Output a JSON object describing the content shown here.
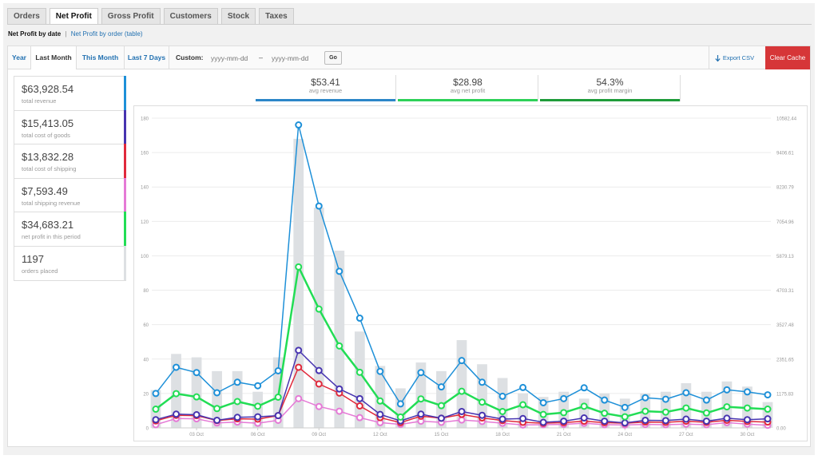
{
  "tabs": [
    "Orders",
    "Net Profit",
    "Gross Profit",
    "Customers",
    "Stock",
    "Taxes"
  ],
  "active_tab": 1,
  "subnav": {
    "current": "Net Profit by date",
    "separator": "|",
    "link": "Net Profit by order (table)"
  },
  "ranges": [
    "Year",
    "Last Month",
    "This Month",
    "Last 7 Days"
  ],
  "active_range": 1,
  "custom": {
    "label": "Custom:",
    "from_placeholder": "yyyy-mm-dd",
    "to_placeholder": "yyyy-mm-dd",
    "dash": "–",
    "go_label": "Go"
  },
  "export_label": "Export CSV",
  "clear_cache_label": "Clear Cache",
  "legend": [
    {
      "value": "$63,928.54",
      "label": "total revenue",
      "color": "#1e90d8"
    },
    {
      "value": "$15,413.05",
      "label": "total cost of goods",
      "color": "#4734b0"
    },
    {
      "value": "$13,832.28",
      "label": "total cost of shipping",
      "color": "#e0293b"
    },
    {
      "value": "$7,593.49",
      "label": "total shipping revenue",
      "color": "#e57ad6"
    },
    {
      "value": "$34,683.21",
      "label": "net profit in this period",
      "color": "#22dd55"
    },
    {
      "value": "1197",
      "label": "orders placed",
      "color": "#dde0e3"
    }
  ],
  "summary": [
    {
      "value": "$53.41",
      "label": "avg revenue",
      "color": "#2c86c8"
    },
    {
      "value": "$28.98",
      "label": "avg net profit",
      "color": "#2ed158"
    },
    {
      "value": "54.3%",
      "label": "avg profit margin",
      "color": "#1f9c3a"
    }
  ],
  "chart_data": {
    "type": "line",
    "x": [
      "1 Oct",
      "2 Oct",
      "3 Oct",
      "4 Oct",
      "5 Oct",
      "6 Oct",
      "7 Oct",
      "8 Oct",
      "9 Oct",
      "10 Oct",
      "11 Oct",
      "12 Oct",
      "13 Oct",
      "14 Oct",
      "15 Oct",
      "16 Oct",
      "17 Oct",
      "18 Oct",
      "19 Oct",
      "20 Oct",
      "21 Oct",
      "22 Oct",
      "23 Oct",
      "24 Oct",
      "25 Oct",
      "26 Oct",
      "27 Oct",
      "28 Oct",
      "29 Oct",
      "30 Oct",
      "31 Oct"
    ],
    "x_ticks": [
      "03 Oct",
      "06 Oct",
      "09 Oct",
      "12 Oct",
      "15 Oct",
      "18 Oct",
      "21 Oct",
      "24 Oct",
      "27 Oct",
      "30 Oct"
    ],
    "y_left_ticks": [
      "0",
      "20",
      "40",
      "60",
      "80",
      "100",
      "120",
      "140",
      "160",
      "180"
    ],
    "y_right_ticks": [
      "0.00",
      "1175.83",
      "2351.65",
      "3527.48",
      "4703.31",
      "5879.13",
      "7054.96",
      "8230.79",
      "9406.61",
      "10582.44"
    ],
    "ylim_left": [
      0,
      180
    ],
    "ylim_right": [
      0,
      10582.44
    ],
    "bars": {
      "name": "orders placed",
      "axis": "left",
      "color": "#dde0e3",
      "values": [
        22,
        43,
        41,
        33,
        33,
        21,
        41,
        168,
        128,
        103,
        56,
        36,
        23,
        38,
        33,
        51,
        37,
        29,
        20,
        18,
        21,
        17,
        20,
        17,
        20,
        21,
        26,
        21,
        27,
        24,
        15
      ]
    },
    "series": [
      {
        "name": "total revenue",
        "axis": "right",
        "color": "#1e90d8",
        "width": 1.5,
        "values": [
          1175,
          2070,
          1890,
          1200,
          1560,
          1440,
          1950,
          10350,
          7580,
          5350,
          3750,
          1930,
          820,
          1890,
          1400,
          2300,
          1560,
          1080,
          1380,
          860,
          1000,
          1370,
          950,
          700,
          1030,
          980,
          1200,
          950,
          1300,
          1230,
          1130
        ]
      },
      {
        "name": "net profit in this period",
        "axis": "right",
        "color": "#22dd55",
        "width": 2.5,
        "values": [
          640,
          1170,
          1060,
          660,
          900,
          740,
          1050,
          5500,
          4060,
          2800,
          1900,
          920,
          370,
          990,
          760,
          1250,
          880,
          560,
          790,
          460,
          520,
          740,
          500,
          380,
          570,
          540,
          680,
          510,
          720,
          680,
          640
        ]
      },
      {
        "name": "total cost of goods",
        "axis": "right",
        "color": "#4734b0",
        "width": 1.5,
        "values": [
          280,
          470,
          450,
          260,
          360,
          380,
          420,
          2650,
          1960,
          1330,
          1000,
          460,
          240,
          470,
          330,
          560,
          430,
          300,
          320,
          190,
          230,
          340,
          230,
          170,
          260,
          250,
          300,
          230,
          330,
          280,
          310
        ]
      },
      {
        "name": "total cost of shipping",
        "axis": "right",
        "color": "#e0293b",
        "width": 1.5,
        "values": [
          240,
          430,
          420,
          250,
          310,
          300,
          420,
          2070,
          1500,
          1190,
          750,
          350,
          180,
          400,
          330,
          460,
          340,
          250,
          190,
          160,
          180,
          230,
          180,
          160,
          200,
          190,
          230,
          190,
          260,
          220,
          200
        ]
      },
      {
        "name": "total shipping revenue",
        "axis": "right",
        "color": "#e57ad6",
        "width": 1.5,
        "values": [
          110,
          320,
          310,
          170,
          200,
          160,
          260,
          1000,
          730,
          570,
          350,
          180,
          120,
          230,
          190,
          270,
          220,
          160,
          100,
          110,
          120,
          160,
          110,
          100,
          120,
          110,
          130,
          110,
          180,
          130,
          90
        ]
      }
    ]
  }
}
